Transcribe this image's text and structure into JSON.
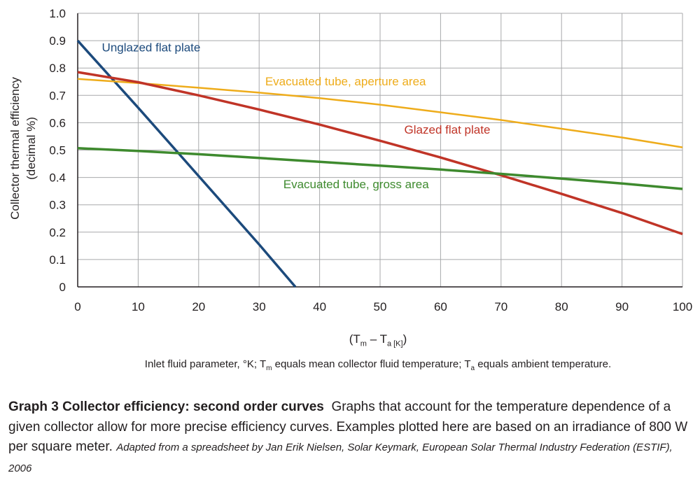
{
  "chart_data": {
    "type": "line",
    "title": "",
    "ylabel_lines": [
      "Collector thermal efficiency",
      "(decimal %)"
    ],
    "xlabel": {
      "prefix": "(T",
      "sub1": "m",
      "mid": " – T",
      "sub2": "a [K]",
      "suffix": ")"
    },
    "x_note": {
      "part1": "Inlet fluid parameter, °K; T",
      "sub1": "m",
      "part2": " equals mean collector fluid temperature; T",
      "sub2": "a",
      "part3": " equals ambient temperature."
    },
    "xlim": [
      0,
      100
    ],
    "ylim": [
      0,
      1.0
    ],
    "x_ticks": [
      "0",
      "10",
      "20",
      "30",
      "40",
      "50",
      "60",
      "70",
      "80",
      "90",
      "100"
    ],
    "y_ticks": [
      "0",
      "0.1",
      "0.2",
      "0.3",
      "0.4",
      "0.5",
      "0.6",
      "0.7",
      "0.8",
      "0.9",
      "1.0"
    ],
    "grid": true,
    "series": [
      {
        "name": "Unglazed flat plate",
        "color": "#1c4a7c",
        "x": [
          0,
          10,
          20,
          30,
          36
        ],
        "y": [
          0.9,
          0.655,
          0.405,
          0.155,
          0.0
        ]
      },
      {
        "name": "Evacuated tube, aperture area",
        "color": "#eeac1b",
        "x": [
          0,
          10,
          20,
          30,
          40,
          50,
          60,
          70,
          80,
          90,
          100
        ],
        "y": [
          0.76,
          0.745,
          0.728,
          0.71,
          0.69,
          0.666,
          0.638,
          0.61,
          0.578,
          0.546,
          0.51
        ]
      },
      {
        "name": "Glazed flat plate",
        "color": "#c03427",
        "x": [
          0,
          10,
          20,
          30,
          40,
          50,
          60,
          70,
          80,
          90,
          100
        ],
        "y": [
          0.785,
          0.748,
          0.7,
          0.648,
          0.593,
          0.534,
          0.473,
          0.408,
          0.34,
          0.27,
          0.193
        ]
      },
      {
        "name": "Evacuated tube, gross area",
        "color": "#3e8a2e",
        "x": [
          0,
          10,
          20,
          30,
          40,
          50,
          60,
          70,
          80,
          90,
          100
        ],
        "y": [
          0.507,
          0.497,
          0.485,
          0.471,
          0.457,
          0.443,
          0.429,
          0.413,
          0.396,
          0.378,
          0.358
        ]
      }
    ]
  },
  "caption": {
    "title": "Graph 3 Collector efficiency: second order curves",
    "body": "Graphs that account for the temperature dependence of a given collector allow for more precise efficiency curves. Examples plotted here are based on an irradiance of 800 W per square meter.",
    "source": "Adapted from a spreadsheet by Jan Erik Nielsen, Solar Keymark, European Solar Thermal Industry Federation (ESTIF), 2006"
  }
}
